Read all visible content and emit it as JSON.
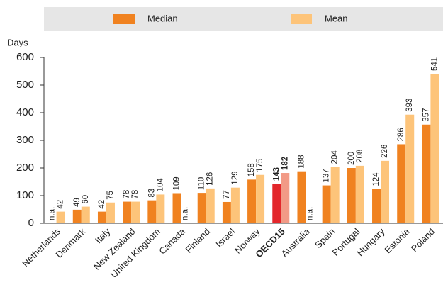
{
  "chart_data": {
    "type": "bar",
    "y_label": "Days",
    "categories": [
      "Netherlands",
      "Denmark",
      "Italy",
      "New Zealand",
      "United Kingdom",
      "Canada",
      "Finland",
      "Israel",
      "Norway",
      "OECD15",
      "Australia",
      "Spain",
      "Portugal",
      "Hungary",
      "Estonia",
      "Poland"
    ],
    "series": [
      {
        "name": "Median",
        "color": "#f08220",
        "highlight_color": "#e3262b",
        "values": [
          null,
          49,
          42,
          78,
          83,
          109,
          110,
          77,
          158,
          143,
          188,
          137,
          200,
          124,
          286,
          357
        ],
        "value_labels": [
          "n.a.",
          "49",
          "42",
          "78",
          "83",
          "109",
          "110",
          "77",
          "158",
          "143",
          "188",
          "137",
          "200",
          "124",
          "286",
          "357"
        ]
      },
      {
        "name": "Mean",
        "color": "#fdc47a",
        "highlight_color": "#f29a86",
        "values": [
          42,
          60,
          75,
          78,
          104,
          null,
          126,
          129,
          175,
          182,
          null,
          204,
          208,
          226,
          393,
          541
        ],
        "value_labels": [
          "42",
          "60",
          "75",
          "78",
          "104",
          "n.a.",
          "126",
          "129",
          "175",
          "182",
          "n.a.",
          "204",
          "208",
          "226",
          "393",
          "541"
        ]
      }
    ],
    "highlight_index": 9,
    "ylim": [
      0,
      600
    ],
    "yticks": [
      0,
      100,
      200,
      300,
      400,
      500,
      600
    ],
    "legend": "top",
    "grid": false
  }
}
